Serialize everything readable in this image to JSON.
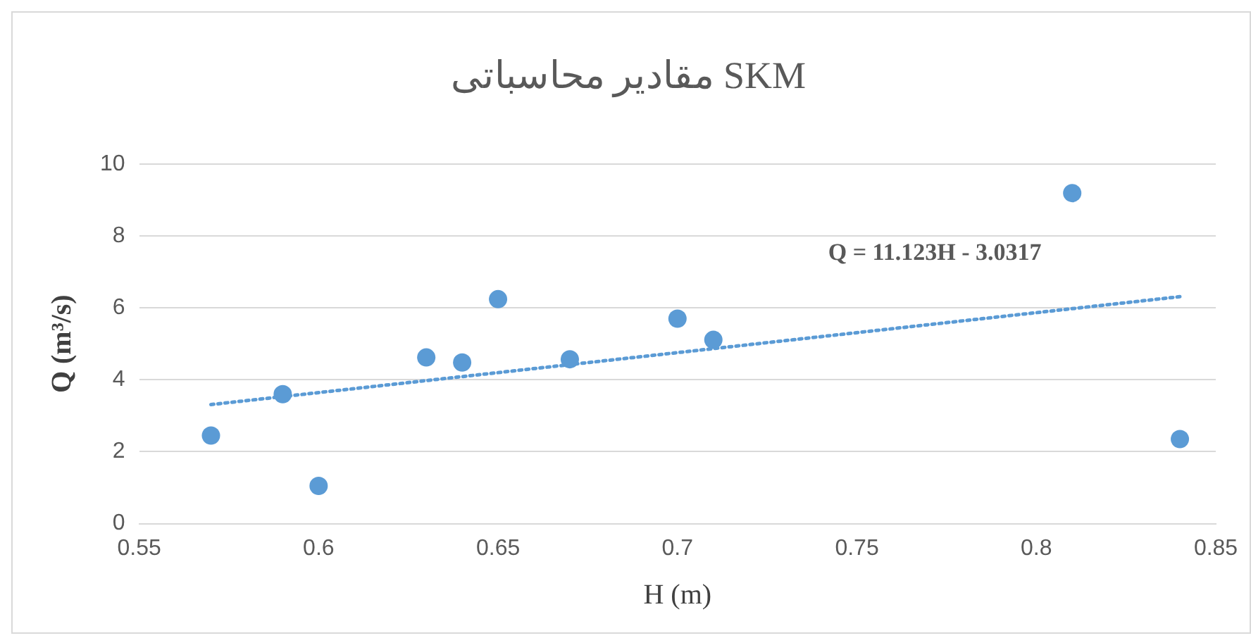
{
  "chart_data": {
    "type": "scatter",
    "title": "مقادیر محاسباتی SKM",
    "xlabel": "H (m)",
    "ylabel": "Q (m³/s)",
    "series": [
      {
        "color": "#5b9bd5",
        "x": [
          0.57,
          0.59,
          0.6,
          0.63,
          0.64,
          0.65,
          0.67,
          0.7,
          0.71,
          0.81,
          0.84
        ],
        "values": [
          2.45,
          3.6,
          1.05,
          4.62,
          4.48,
          6.24,
          4.57,
          5.7,
          5.11,
          9.19,
          2.35
        ],
        "marker": "circle"
      },
      {
        "type": "line",
        "color": "#5b9bd5",
        "x": [
          0.57,
          0.84
        ],
        "values": [
          3.31,
          6.31
        ],
        "marker": "none",
        "line_style": "dotted"
      }
    ],
    "annotations": [
      "Q = 11.123H - 3.0317"
    ],
    "xlim": [
      0.55,
      0.85
    ],
    "xticks": [
      0.55,
      0.6,
      0.65,
      0.7,
      0.75,
      0.8,
      0.85
    ],
    "ylim": [
      0,
      10
    ],
    "yticks": [
      0,
      2,
      4,
      6,
      8,
      10
    ],
    "grid": "y",
    "legend": false
  }
}
